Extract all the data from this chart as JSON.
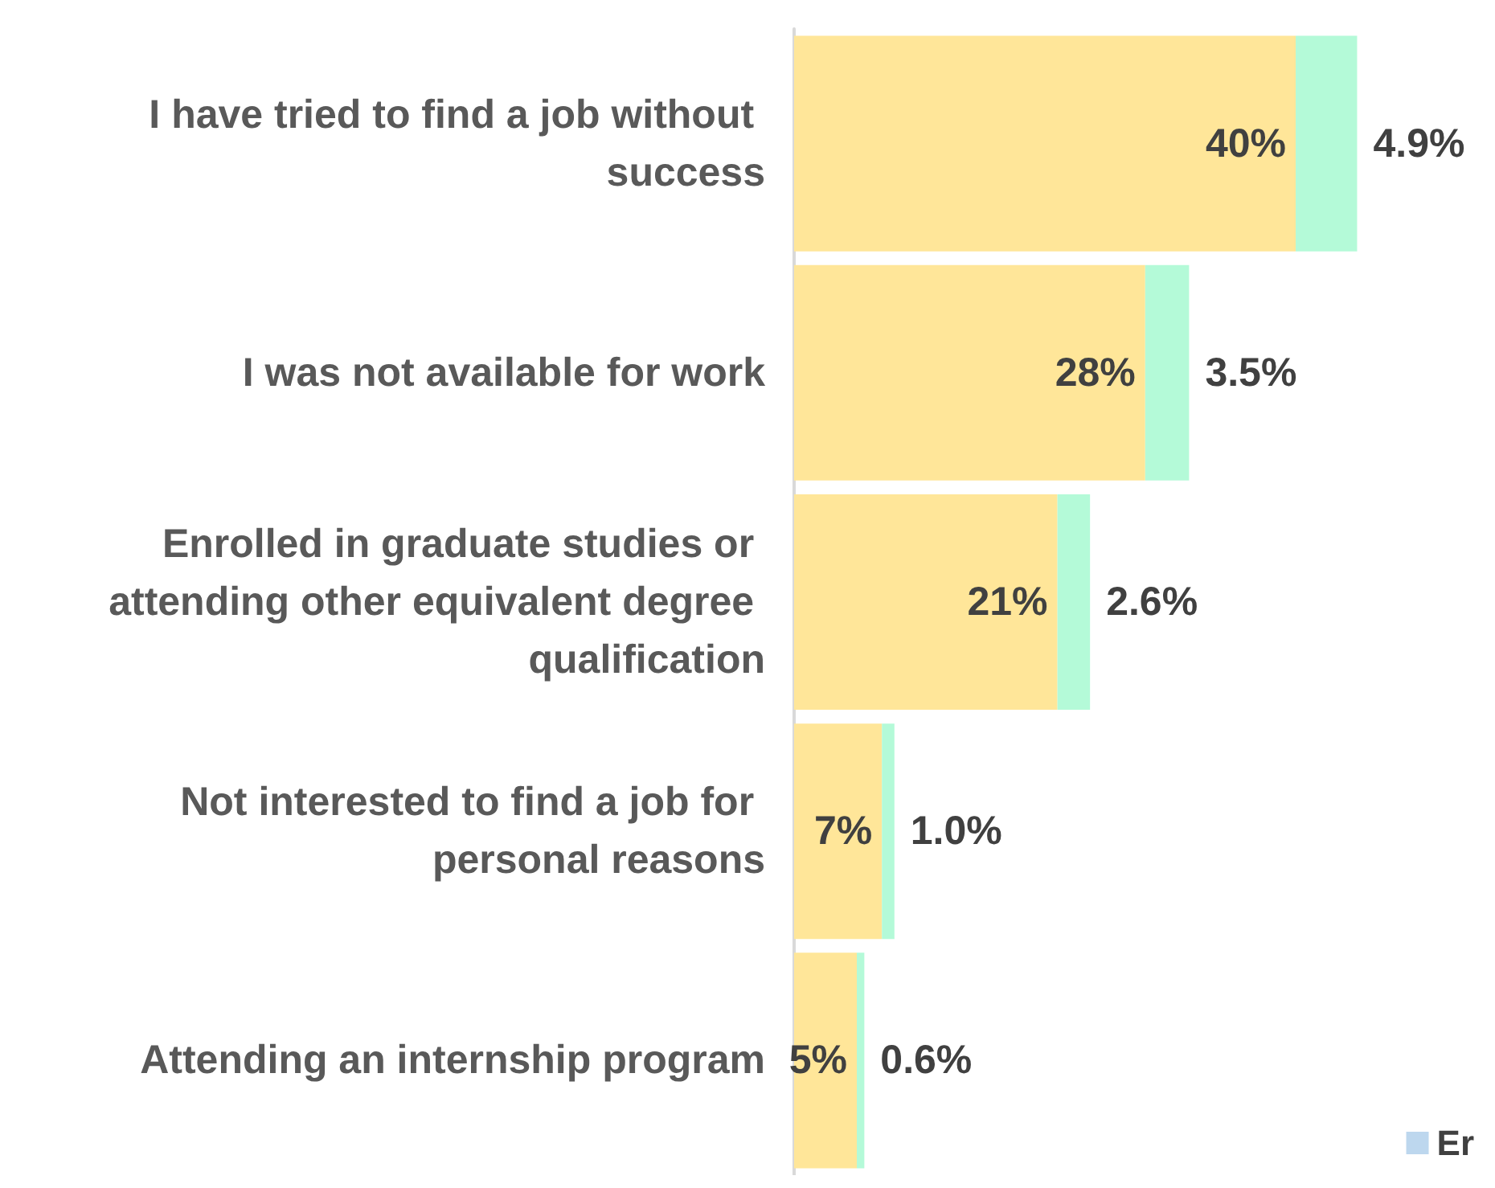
{
  "chart_data": {
    "type": "bar",
    "orientation": "horizontal",
    "stacked": true,
    "categories": [
      "I have tried to find a job without success",
      "I was not available for work",
      "Enrolled in graduate studies or attending other equivalent degree qualification",
      "Not interested to find a job for personal reasons",
      "Attending an internship program"
    ],
    "series": [
      {
        "color": "#ffe699",
        "values": [
          40,
          28,
          21,
          7,
          5
        ],
        "value_labels": [
          "40%",
          "28%",
          "21%",
          "7%",
          "5%"
        ]
      },
      {
        "color": "#b4fad8",
        "values": [
          4.9,
          3.5,
          2.6,
          1.0,
          0.6
        ],
        "value_labels": [
          "4.9%",
          "3.5%",
          "2.6%",
          "1.0%",
          "0.6%"
        ]
      },
      {
        "name": "Er",
        "color": "#bdd7ee",
        "values": [
          null,
          null,
          null,
          null,
          null
        ]
      }
    ],
    "legend": "bottom right"
  }
}
